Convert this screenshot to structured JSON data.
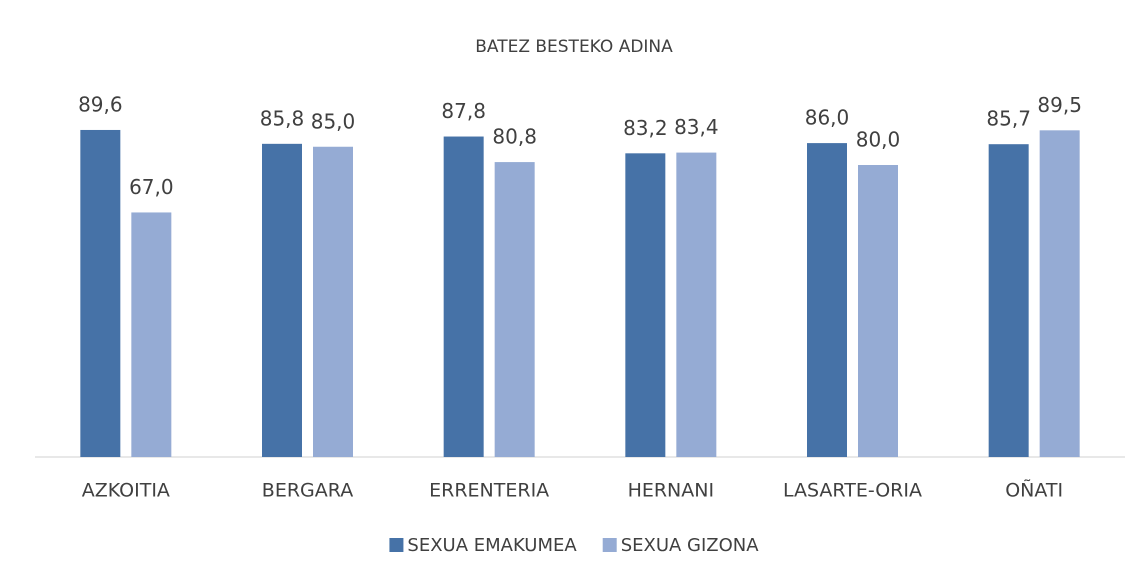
{
  "chart_data": {
    "type": "bar",
    "title": "BATEZ BESTEKO ADINA",
    "categories": [
      "AZKOITIA",
      "BERGARA",
      "ERRENTERIA",
      "HERNANI",
      "LASARTE-ORIA",
      "OÑATI"
    ],
    "series": [
      {
        "name": "SEXUA EMAKUMEA",
        "color": "#4672a7",
        "values": [
          89.6,
          85.8,
          87.8,
          83.2,
          86.0,
          85.7
        ],
        "value_labels": [
          "89,6",
          "85,8",
          "87,8",
          "83,2",
          "86,0",
          "85,7"
        ]
      },
      {
        "name": "SEXUA GIZONA",
        "color": "#95abd4",
        "values": [
          67.0,
          85.0,
          80.8,
          83.4,
          80.0,
          89.5
        ],
        "value_labels": [
          "67,0",
          "85,0",
          "80,8",
          "83,4",
          "80,0",
          "89,5"
        ]
      }
    ],
    "ylim": [
      0,
      100
    ],
    "legend": "bottom"
  }
}
